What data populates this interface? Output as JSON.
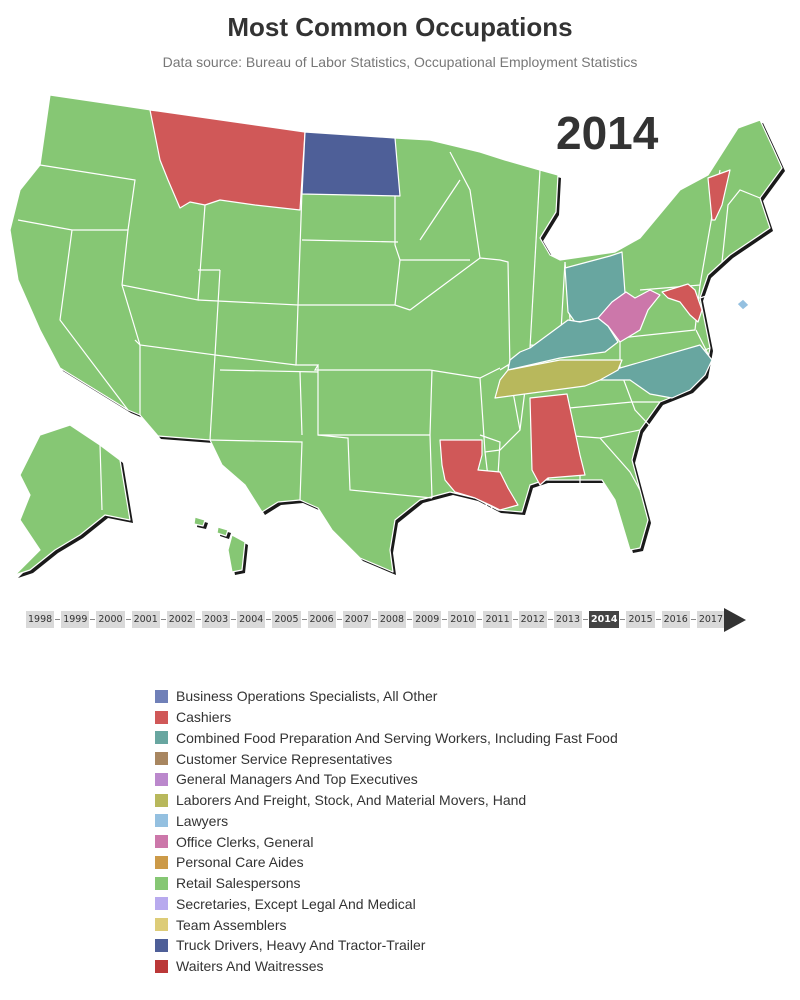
{
  "title": "Most Common Occupations",
  "subtitle": "Data source: Bureau of Labor Statistics, Occupational Employment Statistics",
  "current_year": "2014",
  "timeline": {
    "years": [
      "1998",
      "1999",
      "2000",
      "2001",
      "2002",
      "2003",
      "2004",
      "2005",
      "2006",
      "2007",
      "2008",
      "2009",
      "2010",
      "2011",
      "2012",
      "2013",
      "2014",
      "2015",
      "2016",
      "2017"
    ],
    "selected": "2014",
    "play_icon": "play-icon"
  },
  "legend": [
    {
      "label": "Business Operations Specialists, All Other",
      "color": "#7080b8"
    },
    {
      "label": "Cashiers",
      "color": "#d05858"
    },
    {
      "label": "Combined Food Preparation And Serving Workers, Including Fast Food",
      "color": "#68a6a0"
    },
    {
      "label": "Customer Service Representatives",
      "color": "#a88660"
    },
    {
      "label": "General Managers And Top Executives",
      "color": "#bb88cc"
    },
    {
      "label": "Laborers And Freight, Stock, And Material Movers, Hand",
      "color": "#b8b85c"
    },
    {
      "label": "Lawyers",
      "color": "#94c0e0"
    },
    {
      "label": "Office Clerks, General",
      "color": "#cc77aa"
    },
    {
      "label": "Personal Care Aides",
      "color": "#cc9a48"
    },
    {
      "label": "Retail Salespersons",
      "color": "#86c774"
    },
    {
      "label": "Secretaries, Except Legal And Medical",
      "color": "#b8aaee"
    },
    {
      "label": "Team Assemblers",
      "color": "#ddcc78"
    },
    {
      "label": "Truck Drivers, Heavy And Tractor-Trailer",
      "color": "#4e5f98"
    },
    {
      "label": "Waiters And Waitresses",
      "color": "#bb3838"
    }
  ],
  "states": [
    {
      "id": "montana",
      "occupation": "Cashiers"
    },
    {
      "id": "north-dakota",
      "occupation": "Truck Drivers, Heavy And Tractor-Trailer"
    },
    {
      "id": "vermont",
      "occupation": "Cashiers"
    },
    {
      "id": "ohio",
      "occupation": "Combined Food Preparation And Serving Workers, Including Fast Food"
    },
    {
      "id": "kentucky",
      "occupation": "Combined Food Preparation And Serving Workers, Including Fast Food"
    },
    {
      "id": "north-carolina",
      "occupation": "Combined Food Preparation And Serving Workers, Including Fast Food"
    },
    {
      "id": "west-virginia",
      "occupation": "Office Clerks, General"
    },
    {
      "id": "maryland",
      "occupation": "Cashiers"
    },
    {
      "id": "district-of-columbia",
      "occupation": "Lawyers"
    },
    {
      "id": "tennessee",
      "occupation": "Laborers And Freight, Stock, And Material Movers, Hand"
    },
    {
      "id": "louisiana",
      "occupation": "Cashiers"
    },
    {
      "id": "alabama",
      "occupation": "Cashiers"
    },
    {
      "id": "all-other-states",
      "occupation": "Retail Salespersons"
    }
  ]
}
